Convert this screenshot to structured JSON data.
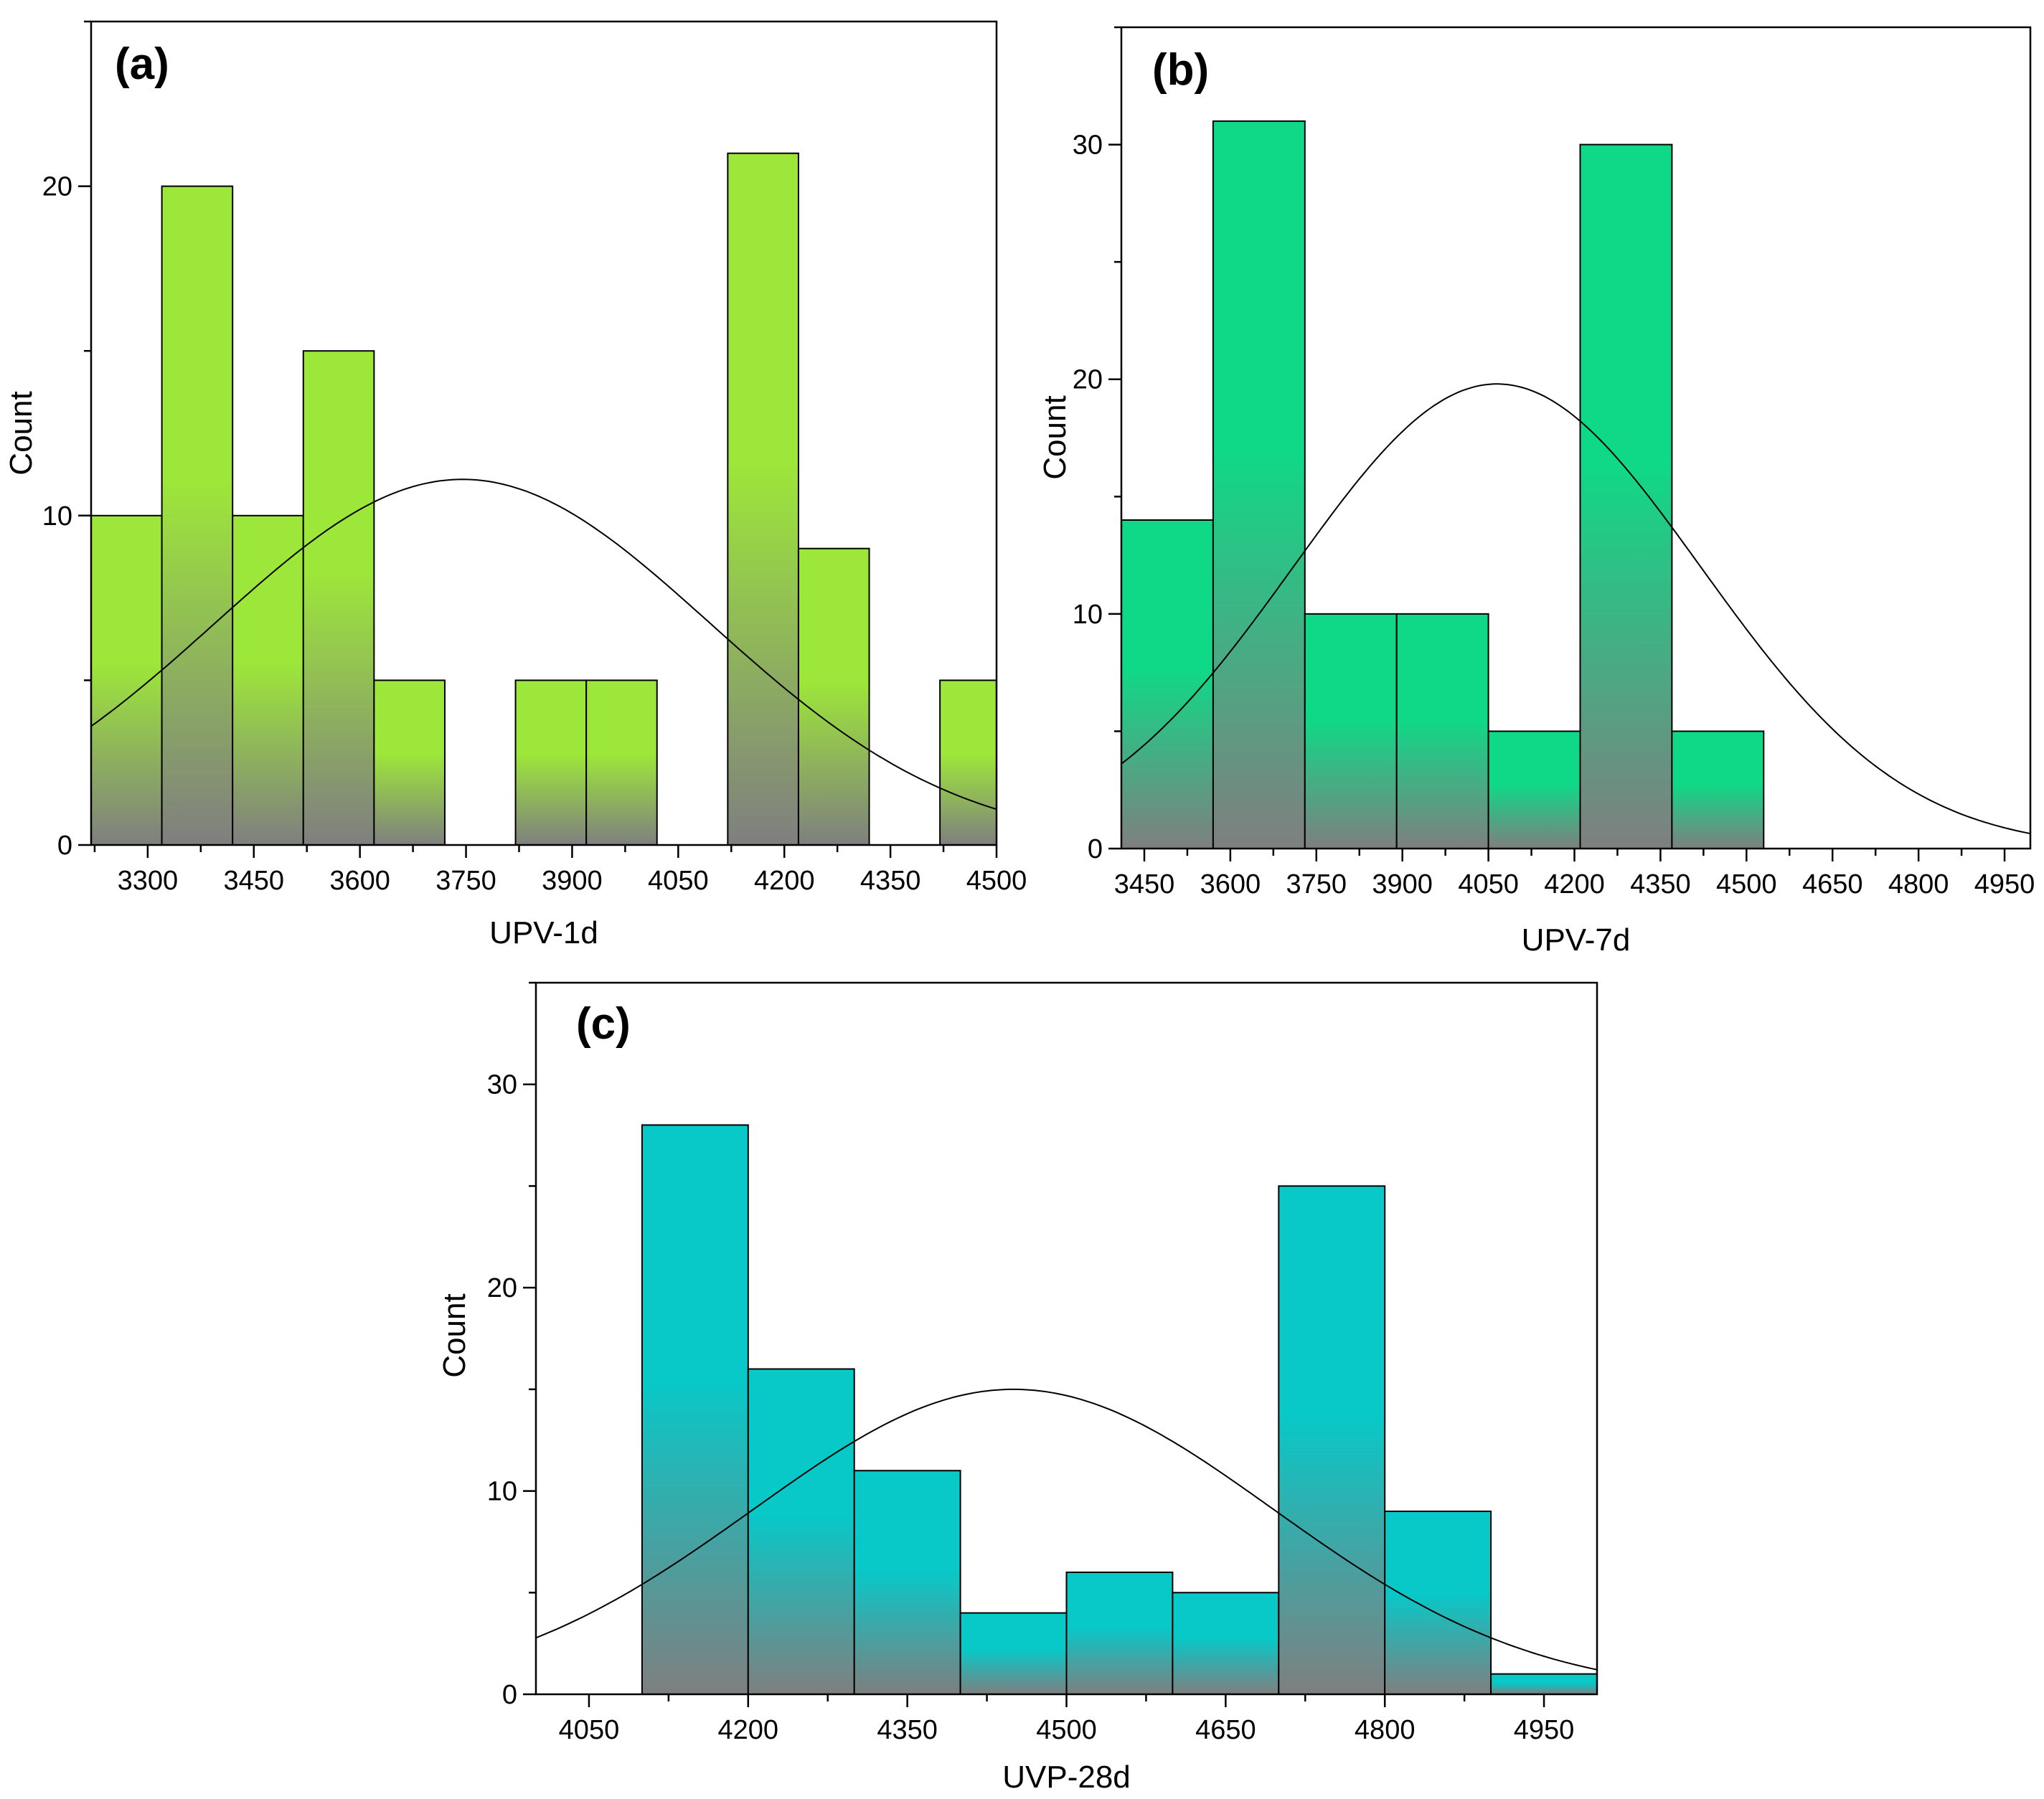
{
  "chart_data": [
    {
      "type": "bar",
      "panel_label": "(a)",
      "xlabel": "UPV-1d",
      "ylabel": "Count",
      "xlim": [
        3220,
        4500
      ],
      "ylim": [
        0,
        25
      ],
      "xticks": [
        3300,
        3450,
        3600,
        3750,
        3900,
        4050,
        4200,
        4350,
        4500
      ],
      "yticks": [
        0,
        10,
        20
      ],
      "bin_width": 100,
      "bin_starts": [
        3220,
        3320,
        3420,
        3520,
        3620,
        3720,
        3820,
        3920,
        4020,
        4120,
        4220,
        4320,
        4420
      ],
      "values": [
        10,
        20,
        10,
        15,
        5,
        0,
        5,
        5,
        0,
        21,
        9,
        0,
        5
      ],
      "normal_curve": {
        "mean": 3745,
        "sd": 350,
        "peak": 11.1
      },
      "fill_top_color": "#9de63a",
      "fill_bottom_color": "#7f7f7f"
    },
    {
      "type": "bar",
      "panel_label": "(b)",
      "xlabel": "UPV-7d",
      "ylabel": "Count",
      "xlim": [
        3410,
        4995
      ],
      "ylim": [
        0,
        35
      ],
      "xticks": [
        3450,
        3600,
        3750,
        3900,
        4050,
        4200,
        4350,
        4500,
        4650,
        4800,
        4950
      ],
      "yticks": [
        0,
        10,
        20,
        30
      ],
      "bin_width": 160,
      "bin_starts": [
        3410,
        3570,
        3730,
        3890,
        4050,
        4210,
        4370,
        4530
      ],
      "values": [
        14,
        31,
        10,
        10,
        5,
        30,
        5,
        0
      ],
      "normal_curve": {
        "mean": 4065,
        "sd": 355,
        "peak": 19.8
      },
      "fill_top_color": "#0fd987",
      "fill_bottom_color": "#7f7f7f"
    },
    {
      "type": "bar",
      "panel_label": "(c)",
      "xlabel": "UVP-28d",
      "ylabel": "Count",
      "xlim": [
        4000,
        5000
      ],
      "ylim": [
        0,
        35
      ],
      "xticks": [
        4050,
        4200,
        4350,
        4500,
        4650,
        4800,
        4950
      ],
      "yticks": [
        0,
        10,
        20,
        30
      ],
      "bin_width": 100,
      "bin_starts": [
        4100,
        4200,
        4300,
        4400,
        4500,
        4600,
        4700,
        4800,
        4900
      ],
      "values": [
        28,
        16,
        11,
        4,
        6,
        5,
        25,
        9,
        1
      ],
      "normal_curve": {
        "mean": 4450,
        "sd": 245,
        "peak": 15
      },
      "fill_top_color": "#08c8c8",
      "fill_bottom_color": "#7f7f7f"
    }
  ]
}
